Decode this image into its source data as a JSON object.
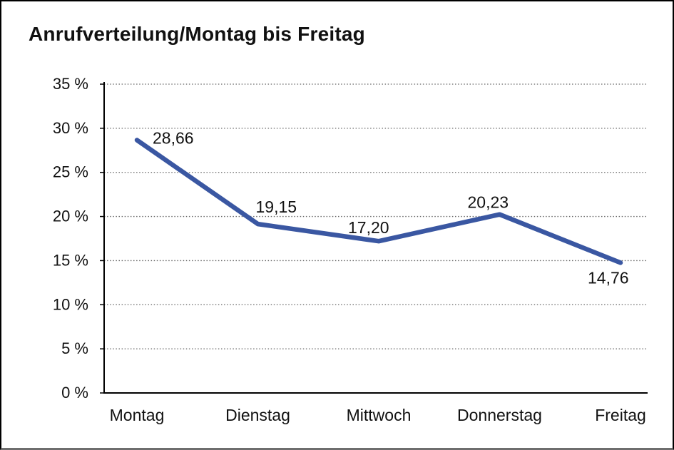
{
  "page": {
    "title": "Anrufverteilung/Montag bis Freitag"
  },
  "colors": {
    "line": "#3A57A2",
    "text": "#111111",
    "grid": "#666666",
    "axis": "#000000",
    "border": "#000000"
  },
  "chart_data": {
    "type": "line",
    "title": "Anrufverteilung/Montag bis Freitag",
    "categories": [
      "Montag",
      "Dienstag",
      "Mittwoch",
      "Donnerstag",
      "Freitag"
    ],
    "series": [
      {
        "name": "Anrufverteilung",
        "values": [
          28.66,
          19.15,
          17.2,
          20.23,
          14.76
        ]
      }
    ],
    "value_labels": [
      "28,66",
      "19,15",
      "17,20",
      "20,23",
      "14,76"
    ],
    "xlabel": "",
    "ylabel": "",
    "ylim": [
      0,
      35
    ],
    "ytick_step": 5,
    "ytick_labels": [
      "0 %",
      "5 %",
      "10 %",
      "15 %",
      "20 %",
      "25 %",
      "30 %",
      "35 %"
    ],
    "grid": "horizontal-dotted",
    "legend": "none",
    "line_color": "#3A57A2"
  }
}
